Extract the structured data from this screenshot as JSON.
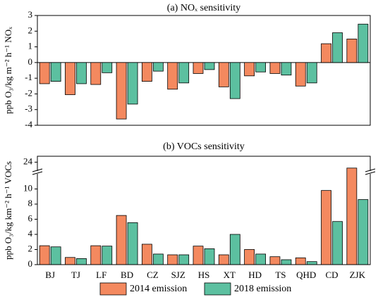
{
  "chart_data": [
    {
      "type": "bar",
      "title": "(a) NOₓ sensitivity",
      "y_label": "ppb O₃/kg m⁻² h⁻¹ NOₓ",
      "categories": [
        "BJ",
        "TJ",
        "LF",
        "BD",
        "CZ",
        "SJZ",
        "HS",
        "XT",
        "HD",
        "TS",
        "QHD",
        "CD",
        "ZJK"
      ],
      "series": [
        {
          "name": "2014 emission",
          "color": "#f4895f",
          "values": [
            -1.35,
            -2.05,
            -1.4,
            -3.6,
            -1.2,
            -1.7,
            -0.7,
            -1.55,
            -0.85,
            -0.7,
            -1.5,
            1.2,
            1.5
          ]
        },
        {
          "name": "2018 emission",
          "color": "#5cc0a0",
          "values": [
            -1.2,
            -1.35,
            -0.65,
            -2.65,
            -0.55,
            -1.3,
            -0.45,
            -2.3,
            -0.6,
            -0.8,
            -1.3,
            1.9,
            2.45
          ]
        }
      ],
      "ylim": [
        -4,
        3
      ],
      "yticks": [
        -4,
        -3,
        -2,
        -1,
        0,
        1,
        2,
        3
      ]
    },
    {
      "type": "bar",
      "title": "(b) VOCs sensitivity",
      "y_label": "ppb O₃/kg km⁻² h⁻¹ VOCs",
      "categories": [
        "BJ",
        "TJ",
        "LF",
        "BD",
        "CZ",
        "SJZ",
        "HS",
        "XT",
        "HD",
        "TS",
        "QHD",
        "CD",
        "ZJK"
      ],
      "series": [
        {
          "name": "2014 emission",
          "color": "#f4895f",
          "values": [
            2.5,
            0.95,
            2.5,
            6.5,
            2.7,
            1.3,
            2.45,
            1.3,
            2.0,
            1.05,
            0.9,
            9.8,
            23
          ]
        },
        {
          "name": "2018 emission",
          "color": "#5cc0a0",
          "values": [
            2.35,
            0.8,
            2.45,
            5.55,
            1.4,
            1.3,
            2.1,
            4.0,
            1.4,
            0.65,
            0.4,
            5.7,
            8.6
          ]
        }
      ],
      "ylim": [
        0,
        25
      ],
      "axis_break": [
        12,
        22.5
      ],
      "yticks": [
        0,
        2,
        4,
        6,
        8,
        10,
        24
      ]
    }
  ]
}
